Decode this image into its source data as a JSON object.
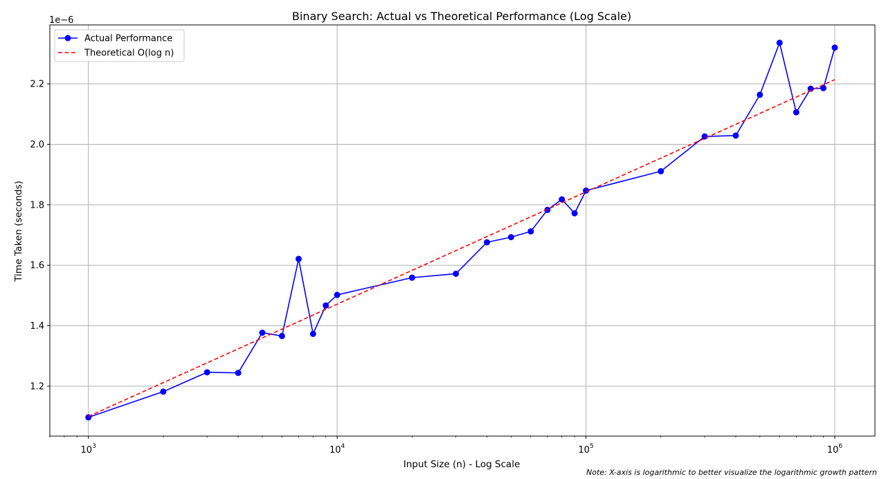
{
  "chart_data": {
    "type": "line",
    "title": "Binary Search: Actual vs Theoretical Performance (Log Scale)",
    "xlabel": "Input Size (n) - Log Scale",
    "ylabel": "Time Taken (seconds)",
    "y_offset_label": "1e−6",
    "x_scale": "log",
    "xlim": [
      700,
      1450000
    ],
    "ylim": [
      1.035e-06,
      2.395e-06
    ],
    "grid": true,
    "legend_position": "top-left",
    "x_ticks": [
      {
        "value": 1000,
        "base": "10",
        "exp": "3"
      },
      {
        "value": 10000,
        "base": "10",
        "exp": "4"
      },
      {
        "value": 100000,
        "base": "10",
        "exp": "5"
      },
      {
        "value": 1000000,
        "base": "10",
        "exp": "6"
      }
    ],
    "y_ticks": [
      {
        "value": 1.2e-06,
        "label": "1.2"
      },
      {
        "value": 1.4e-06,
        "label": "1.4"
      },
      {
        "value": 1.6e-06,
        "label": "1.6"
      },
      {
        "value": 1.8e-06,
        "label": "1.8"
      },
      {
        "value": 2e-06,
        "label": "2.0"
      },
      {
        "value": 2.2e-06,
        "label": "2.2"
      }
    ],
    "series": [
      {
        "name": "Actual Performance",
        "color": "#0000ff",
        "style": "solid",
        "marker": "circle",
        "x": [
          1000,
          2000,
          3000,
          4000,
          5000,
          6000,
          7000,
          8000,
          9000,
          10000,
          20000,
          30000,
          40000,
          50000,
          60000,
          70000,
          80000,
          90000,
          100000,
          200000,
          300000,
          400000,
          500000,
          600000,
          700000,
          800000,
          900000,
          1000000
        ],
        "y": [
          1.097e-06,
          1.182e-06,
          1.246e-06,
          1.244e-06,
          1.377e-06,
          1.366e-06,
          1.621e-06,
          1.373e-06,
          1.467e-06,
          1.502e-06,
          1.559e-06,
          1.572e-06,
          1.676e-06,
          1.693e-06,
          1.712e-06,
          1.783e-06,
          1.818e-06,
          1.772e-06,
          1.847e-06,
          1.911e-06,
          2.026e-06,
          2.029e-06,
          2.164e-06,
          2.336e-06,
          2.106e-06,
          2.184e-06,
          2.186e-06,
          2.32e-06
        ]
      },
      {
        "name": "Theoretical O(log n)",
        "color": "#ff0000",
        "style": "dashed",
        "x": [
          1000,
          1000000
        ],
        "y": [
          1.1e-06,
          2.214e-06
        ]
      }
    ],
    "annotation": "Note: X-axis is logarithmic to better visualize the logarithmic growth pattern"
  }
}
